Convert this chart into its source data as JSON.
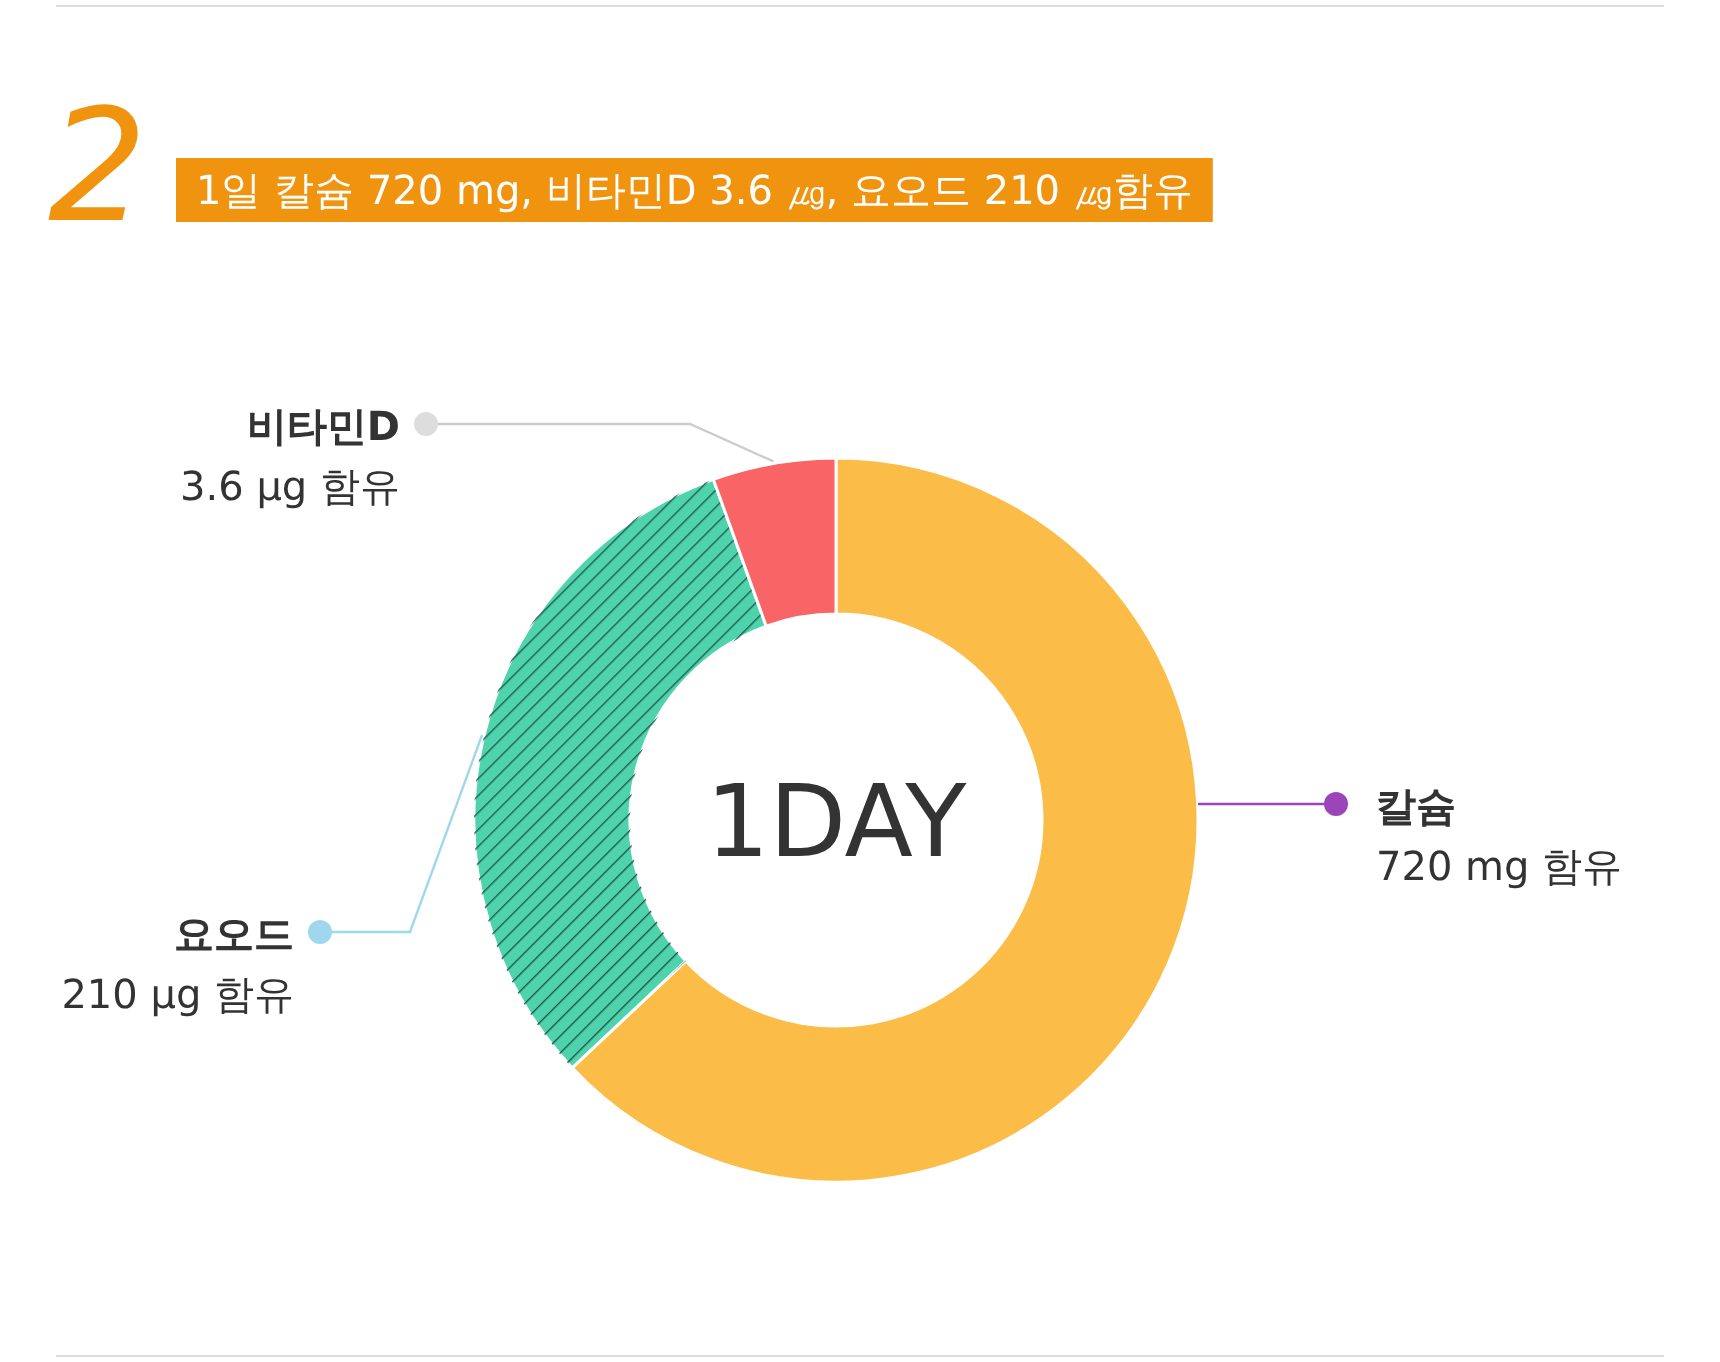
{
  "chart_data": {
    "type": "donut",
    "title": "1일 칼슘 720 mg, 비타민D 3.6 ㎍, 요오드 210 ㎍함유",
    "categories": [
      "칼슘",
      "요오드",
      "비타민D"
    ],
    "values": [
      63,
      31.5,
      5.5
    ],
    "colors": [
      "#fbbd47",
      "#4fd3ad",
      "#f96466"
    ],
    "annotations": [
      "2",
      "1DAY",
      "720 mg 함유",
      "210 µg 함유",
      "3.6 µg 함유"
    ]
  }
}
